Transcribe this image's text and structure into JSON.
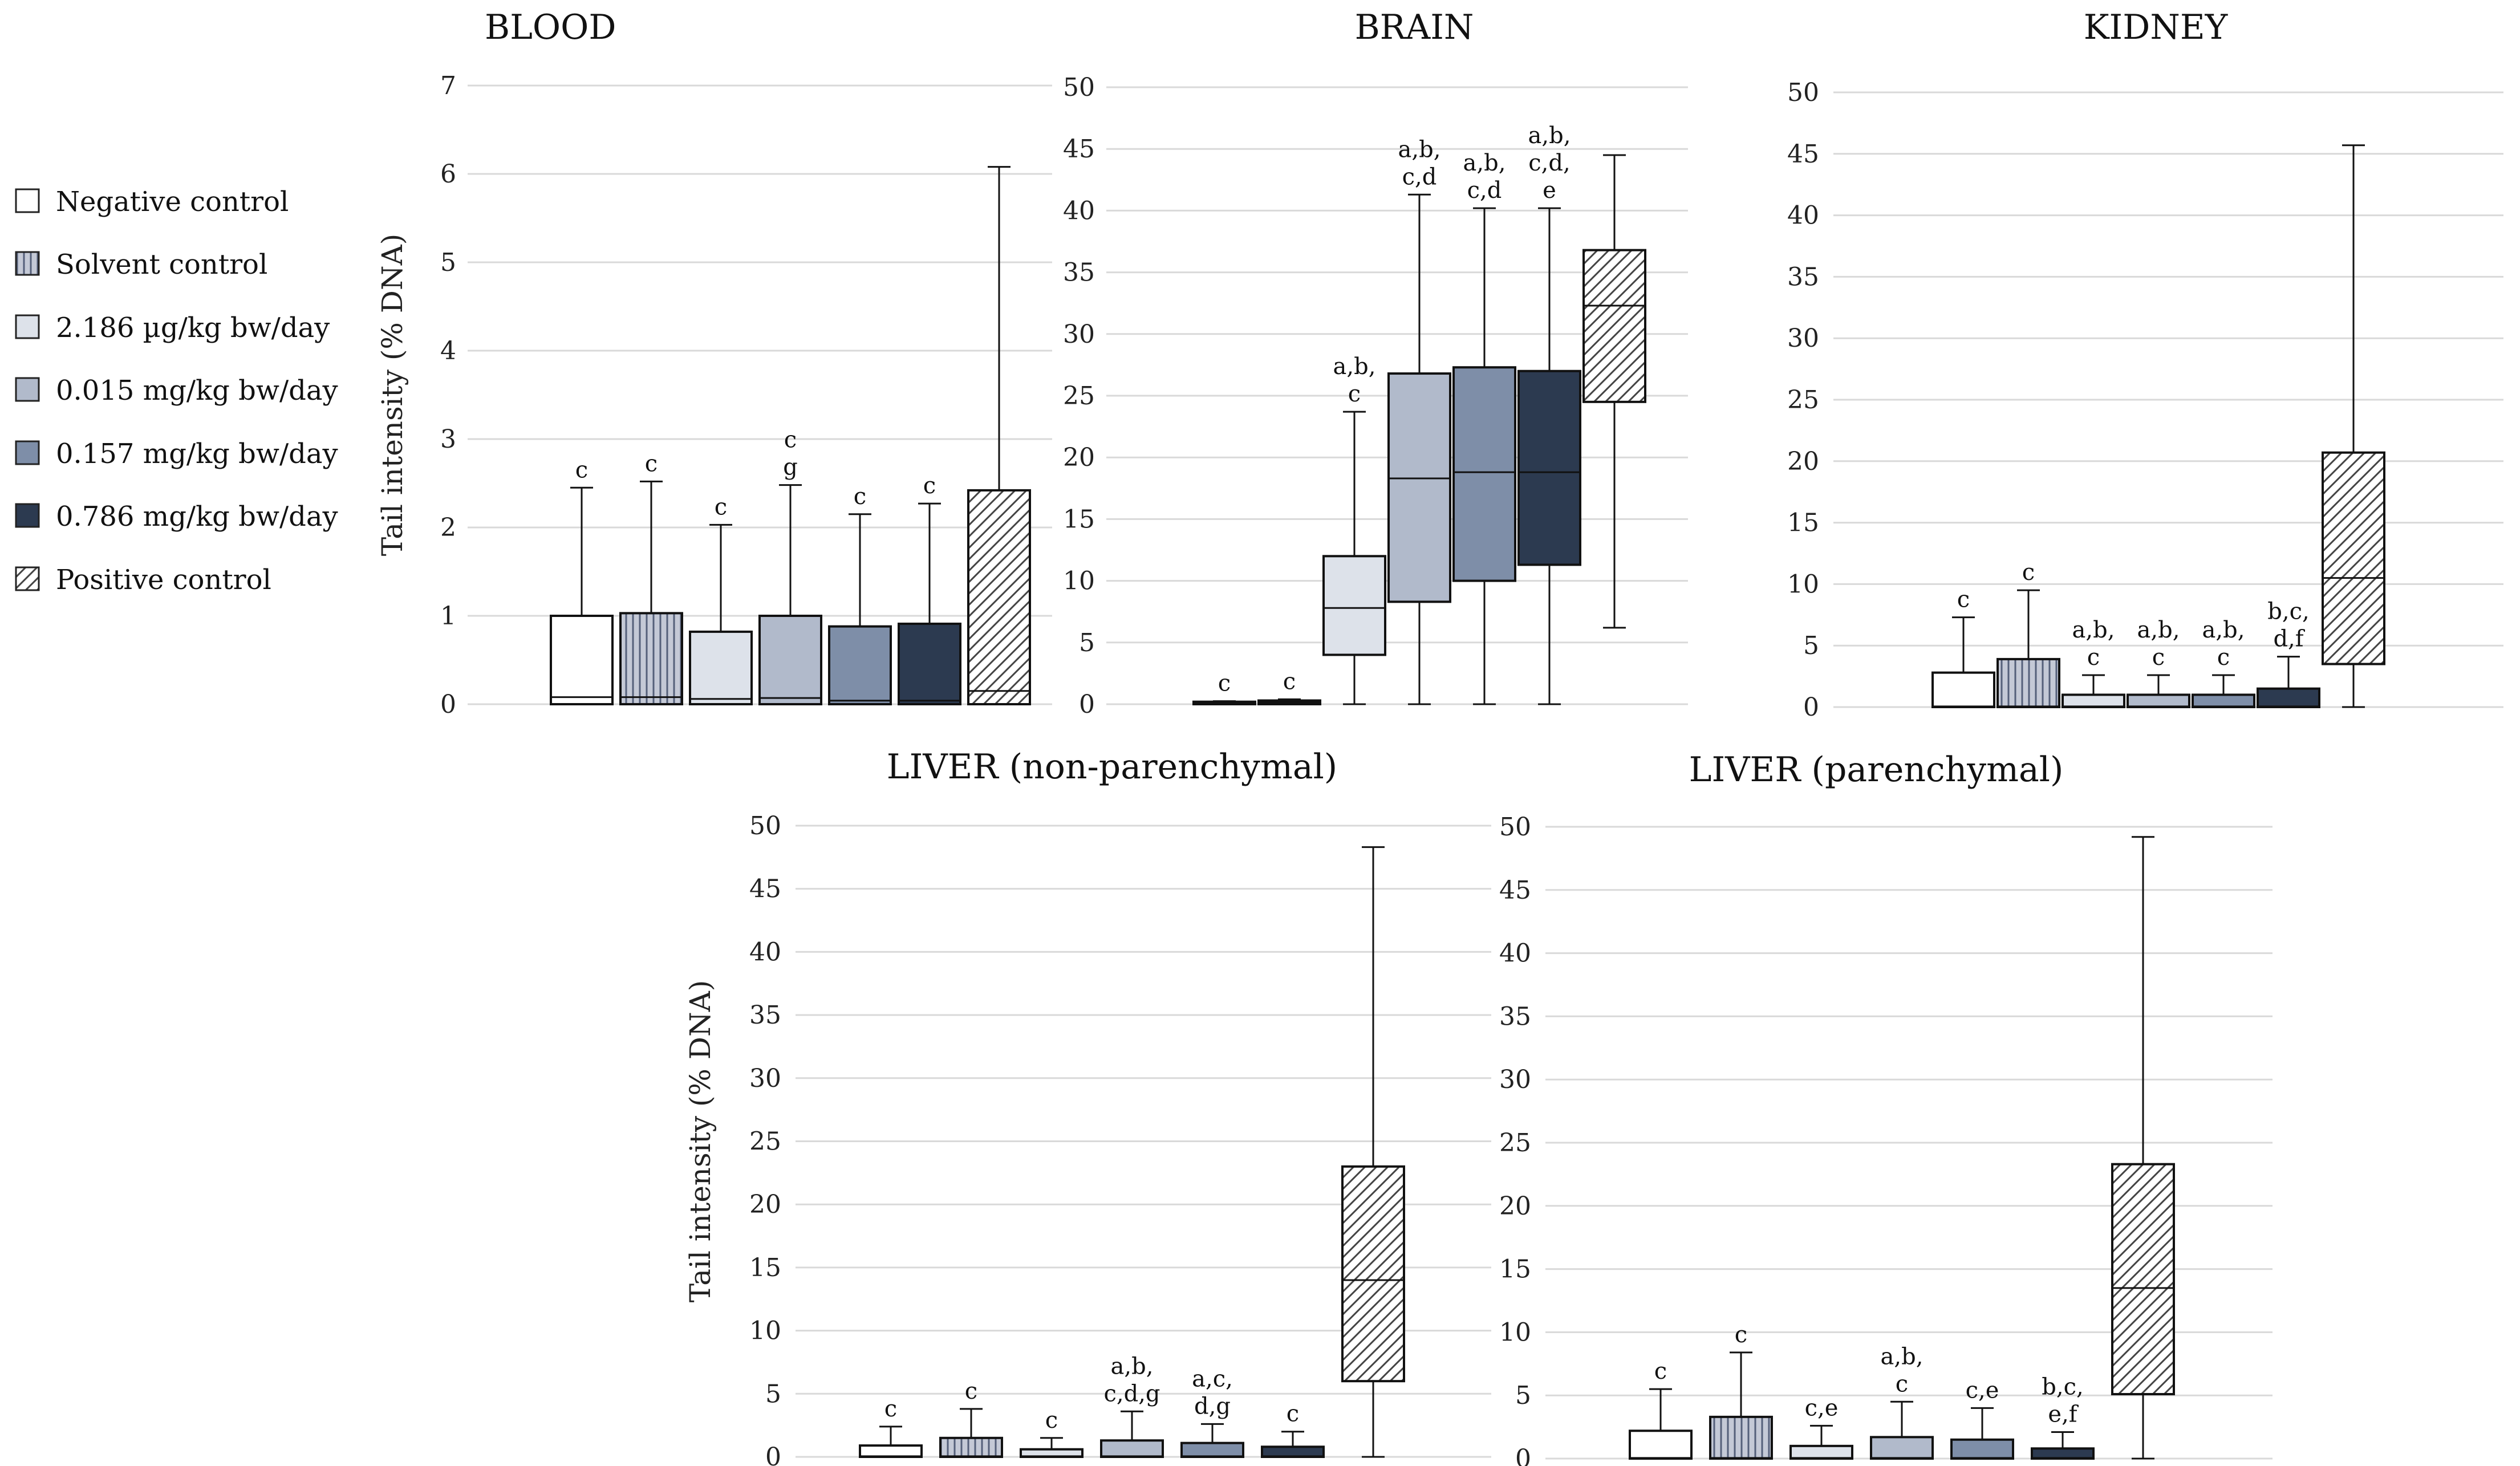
{
  "legend": [
    {
      "label": "Negative control",
      "fill": "#ffffff",
      "pattern": "none"
    },
    {
      "label": "Solvent control",
      "fill": "#c4c9d6",
      "pattern": "vlines"
    },
    {
      "label": "2.186 µg/kg bw/day",
      "fill": "#dde2ea",
      "pattern": "none"
    },
    {
      "label": "0.015 mg/kg bw/day",
      "fill": "#b1bacb",
      "pattern": "none"
    },
    {
      "label": "0.157 mg/kg bw/day",
      "fill": "#7e8ea8",
      "pattern": "none"
    },
    {
      "label": "0.786 mg/kg bw/day",
      "fill": "#2c3a50",
      "pattern": "none"
    },
    {
      "label": "Positive control",
      "fill": "#ffffff",
      "pattern": "diag"
    }
  ],
  "chart_data": [
    {
      "type": "box",
      "title": "BLOOD",
      "ylabel": "Tail intensity (% DNA)",
      "ylim": [
        0,
        7
      ],
      "yticks": [
        "0",
        "1",
        "2",
        "3",
        "4",
        "5",
        "6",
        "7"
      ],
      "grid": true,
      "boxes": [
        {
          "group": 0,
          "min": 0,
          "q1": 0,
          "median": 0.08,
          "q3": 1.0,
          "max": 2.45,
          "label": [
            "c"
          ]
        },
        {
          "group": 1,
          "min": 0,
          "q1": 0,
          "median": 0.08,
          "q3": 1.03,
          "max": 2.52,
          "label": [
            "c"
          ]
        },
        {
          "group": 2,
          "min": 0,
          "q1": 0,
          "median": 0.06,
          "q3": 0.82,
          "max": 2.03,
          "label": [
            "c"
          ]
        },
        {
          "group": 3,
          "min": 0,
          "q1": 0,
          "median": 0.07,
          "q3": 1.0,
          "max": 2.48,
          "label": [
            "c",
            "g"
          ]
        },
        {
          "group": 4,
          "min": 0,
          "q1": 0,
          "median": 0.04,
          "q3": 0.88,
          "max": 2.15,
          "label": [
            "c"
          ]
        },
        {
          "group": 5,
          "min": 0,
          "q1": 0,
          "median": 0.04,
          "q3": 0.91,
          "max": 2.27,
          "label": [
            "c"
          ]
        },
        {
          "group": 6,
          "min": 0,
          "q1": 0,
          "median": 0.15,
          "q3": 2.42,
          "max": 6.08,
          "label": []
        }
      ]
    },
    {
      "type": "box",
      "title": "BRAIN",
      "ylabel": "",
      "ylim": [
        0,
        50
      ],
      "yticks": [
        "0",
        "5",
        "10",
        "15",
        "20",
        "25",
        "30",
        "35",
        "40",
        "45",
        "50"
      ],
      "grid": true,
      "boxes": [
        {
          "group": 0,
          "min": 0,
          "q1": 0,
          "median": 0.1,
          "q3": 0.2,
          "max": 0.25,
          "label": [
            "c"
          ]
        },
        {
          "group": 1,
          "min": 0,
          "q1": 0,
          "median": 0.15,
          "q3": 0.3,
          "max": 0.4,
          "label": [
            "c"
          ]
        },
        {
          "group": 2,
          "min": 0,
          "q1": 4,
          "median": 7.8,
          "q3": 12,
          "max": 23.7,
          "label": [
            "a,b,",
            "c"
          ]
        },
        {
          "group": 3,
          "min": 0,
          "q1": 8.3,
          "median": 18.3,
          "q3": 26.8,
          "max": 41.3,
          "label": [
            "a,b,",
            "c,d"
          ]
        },
        {
          "group": 4,
          "min": 0,
          "q1": 10,
          "median": 18.8,
          "q3": 27.3,
          "max": 40.2,
          "label": [
            "a,b,",
            "c,d"
          ]
        },
        {
          "group": 5,
          "min": 0,
          "q1": 11.3,
          "median": 18.8,
          "q3": 27,
          "max": 40.2,
          "label": [
            "a,b,",
            "c,d,",
            "e"
          ]
        },
        {
          "group": 6,
          "min": 6.2,
          "q1": 24.5,
          "median": 32.3,
          "q3": 36.8,
          "max": 44.5,
          "label": []
        }
      ]
    },
    {
      "type": "box",
      "title": "KIDNEY",
      "ylabel": "",
      "ylim": [
        0,
        50
      ],
      "yticks": [
        "0",
        "5",
        "10",
        "15",
        "20",
        "25",
        "30",
        "35",
        "40",
        "45",
        "50"
      ],
      "grid": true,
      "boxes": [
        {
          "group": 0,
          "min": 0,
          "q1": 0,
          "median": 0.05,
          "q3": 2.8,
          "max": 7.3,
          "label": [
            "c"
          ]
        },
        {
          "group": 1,
          "min": 0,
          "q1": 0,
          "median": 0.05,
          "q3": 3.9,
          "max": 9.5,
          "label": [
            "c"
          ]
        },
        {
          "group": 2,
          "min": 0,
          "q1": 0,
          "median": 0.05,
          "q3": 1.0,
          "max": 2.6,
          "label": [
            "a,b,",
            "c"
          ]
        },
        {
          "group": 3,
          "min": 0,
          "q1": 0,
          "median": 0.05,
          "q3": 1.0,
          "max": 2.6,
          "label": [
            "a,b,",
            "c"
          ]
        },
        {
          "group": 4,
          "min": 0,
          "q1": 0,
          "median": 0.05,
          "q3": 1.0,
          "max": 2.6,
          "label": [
            "a,b,",
            "c"
          ]
        },
        {
          "group": 5,
          "min": 0,
          "q1": 0,
          "median": 0.05,
          "q3": 1.5,
          "max": 4.1,
          "label": [
            "b,c,",
            "d,f"
          ]
        },
        {
          "group": 6,
          "min": 0,
          "q1": 3.5,
          "median": 10.5,
          "q3": 20.7,
          "max": 45.7,
          "label": []
        }
      ]
    },
    {
      "type": "box",
      "title": "LIVER (non-parenchymal)",
      "ylabel": "Tail intensity (% DNA)",
      "ylim": [
        0,
        50
      ],
      "yticks": [
        "0",
        "5",
        "10",
        "15",
        "20",
        "25",
        "30",
        "35",
        "40",
        "45",
        "50"
      ],
      "grid": true,
      "boxes": [
        {
          "group": 0,
          "min": 0,
          "q1": 0,
          "median": 0.05,
          "q3": 0.9,
          "max": 2.4,
          "label": [
            "c"
          ]
        },
        {
          "group": 1,
          "min": 0,
          "q1": 0,
          "median": 0.05,
          "q3": 1.5,
          "max": 3.8,
          "label": [
            "c"
          ]
        },
        {
          "group": 2,
          "min": 0,
          "q1": 0,
          "median": 0.05,
          "q3": 0.6,
          "max": 1.5,
          "label": [
            "c"
          ]
        },
        {
          "group": 3,
          "min": 0,
          "q1": 0,
          "median": 0.05,
          "q3": 1.3,
          "max": 3.6,
          "label": [
            "a,b,",
            "c,d,g"
          ]
        },
        {
          "group": 4,
          "min": 0,
          "q1": 0,
          "median": 0.05,
          "q3": 1.1,
          "max": 2.6,
          "label": [
            "a,c,",
            "d,g"
          ]
        },
        {
          "group": 5,
          "min": 0,
          "q1": 0,
          "median": 0.05,
          "q3": 0.8,
          "max": 2.0,
          "label": [
            "c"
          ]
        },
        {
          "group": 6,
          "min": 0,
          "q1": 6,
          "median": 14,
          "q3": 23,
          "max": 48.3,
          "label": []
        }
      ]
    },
    {
      "type": "box",
      "title": "LIVER (parenchymal)",
      "ylabel": "",
      "ylim": [
        0,
        50
      ],
      "yticks": [
        "0",
        "5",
        "10",
        "15",
        "20",
        "25",
        "30",
        "35",
        "40",
        "45",
        "50"
      ],
      "grid": true,
      "boxes": [
        {
          "group": 0,
          "min": 0,
          "q1": 0,
          "median": 0.05,
          "q3": 2.2,
          "max": 5.5,
          "label": [
            "c"
          ]
        },
        {
          "group": 1,
          "min": 0,
          "q1": 0,
          "median": 0.05,
          "q3": 3.3,
          "max": 8.4,
          "label": [
            "c"
          ]
        },
        {
          "group": 2,
          "min": 0,
          "q1": 0,
          "median": 0.05,
          "q3": 1.0,
          "max": 2.6,
          "label": [
            "c,e"
          ]
        },
        {
          "group": 3,
          "min": 0,
          "q1": 0,
          "median": 0.05,
          "q3": 1.7,
          "max": 4.5,
          "label": [
            "a,b,",
            "c"
          ]
        },
        {
          "group": 4,
          "min": 0,
          "q1": 0,
          "median": 0.05,
          "q3": 1.5,
          "max": 4.0,
          "label": [
            "c,e"
          ]
        },
        {
          "group": 5,
          "min": 0,
          "q1": 0,
          "median": 0.05,
          "q3": 0.8,
          "max": 2.1,
          "label": [
            "b,c,",
            "e,f"
          ]
        },
        {
          "group": 6,
          "min": 0,
          "q1": 5.1,
          "median": 13.5,
          "q3": 23.3,
          "max": 49.2,
          "label": []
        }
      ]
    }
  ]
}
